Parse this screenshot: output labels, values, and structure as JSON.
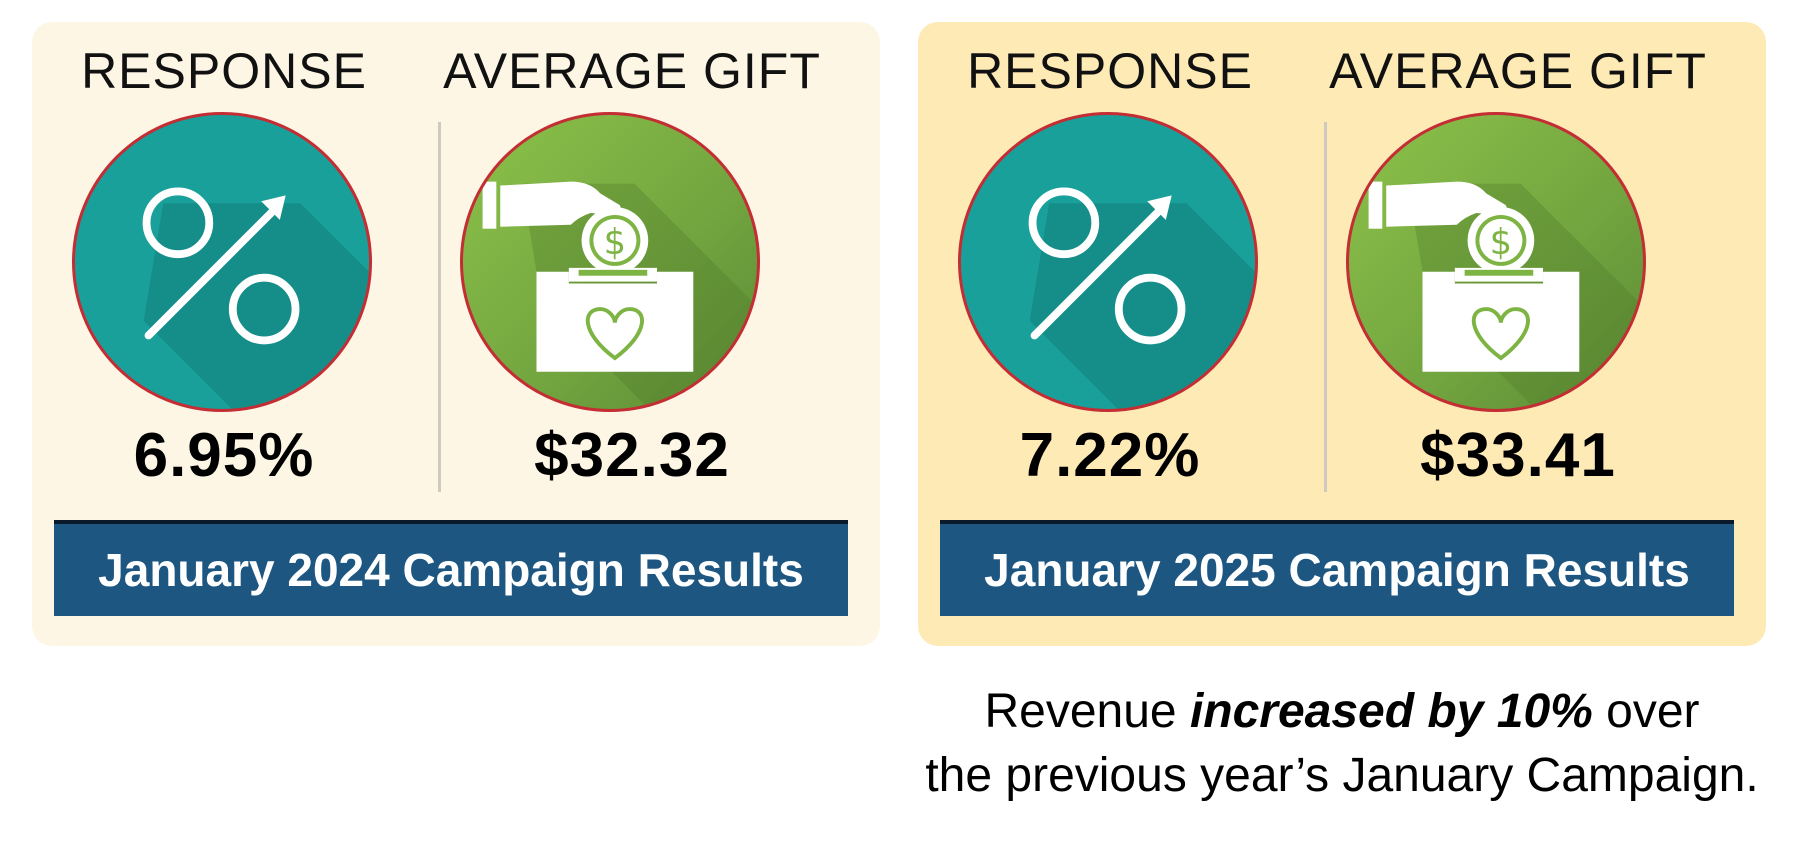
{
  "panels": [
    {
      "response_label": "RESPONSE",
      "average_gift_label": "AVERAGE GIFT",
      "response_value": "6.95%",
      "average_gift_value": "$32.32",
      "banner": "January 2024 Campaign Results"
    },
    {
      "response_label": "RESPONSE",
      "average_gift_label": "AVERAGE GIFT",
      "response_value": "7.22%",
      "average_gift_value": "$33.41",
      "banner": "January 2025 Campaign Results"
    }
  ],
  "caption": {
    "prefix": "Revenue ",
    "emphasis": "increased by 10%",
    "suffix": " over",
    "line2": "the previous year’s January Campaign."
  },
  "colors": {
    "panel_2024": "#fdf6e5",
    "panel_2025": "#fdeab5",
    "teal": "#1aa09b",
    "green": "#7eb444",
    "ring": "#c32d33",
    "banner": "#1e5682"
  },
  "icons": [
    "percent-arrow-icon",
    "donation-box-icon"
  ]
}
